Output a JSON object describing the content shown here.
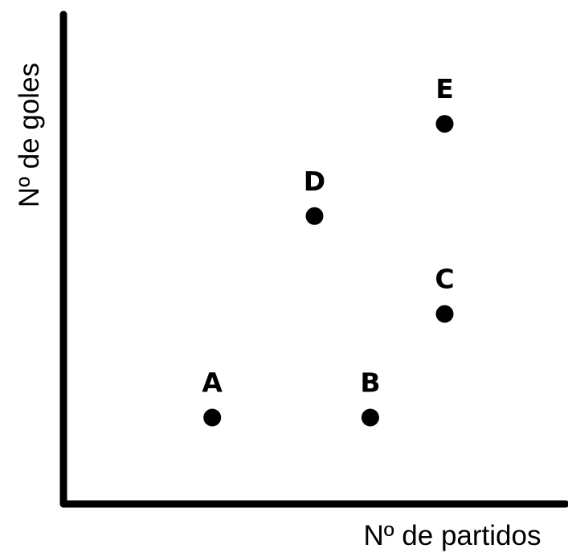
{
  "chart_data": {
    "type": "scatter",
    "title": "",
    "xlabel": "Nº de partidos",
    "ylabel": "Nº de goles",
    "grid": false,
    "tick_labels": false,
    "points": [
      {
        "label": "A",
        "x": 1.0,
        "y": 1.0
      },
      {
        "label": "B",
        "x": 2.7,
        "y": 1.0
      },
      {
        "label": "C",
        "x": 3.5,
        "y": 2.8
      },
      {
        "label": "D",
        "x": 2.1,
        "y": 4.5
      },
      {
        "label": "E",
        "x": 3.5,
        "y": 6.1
      }
    ],
    "xlim": [
      -0.6,
      4.8
    ],
    "ylim": [
      -0.5,
      8.0
    ],
    "colors": {
      "axis": "#000000",
      "marker": "#000000",
      "background": "#ffffff"
    }
  }
}
